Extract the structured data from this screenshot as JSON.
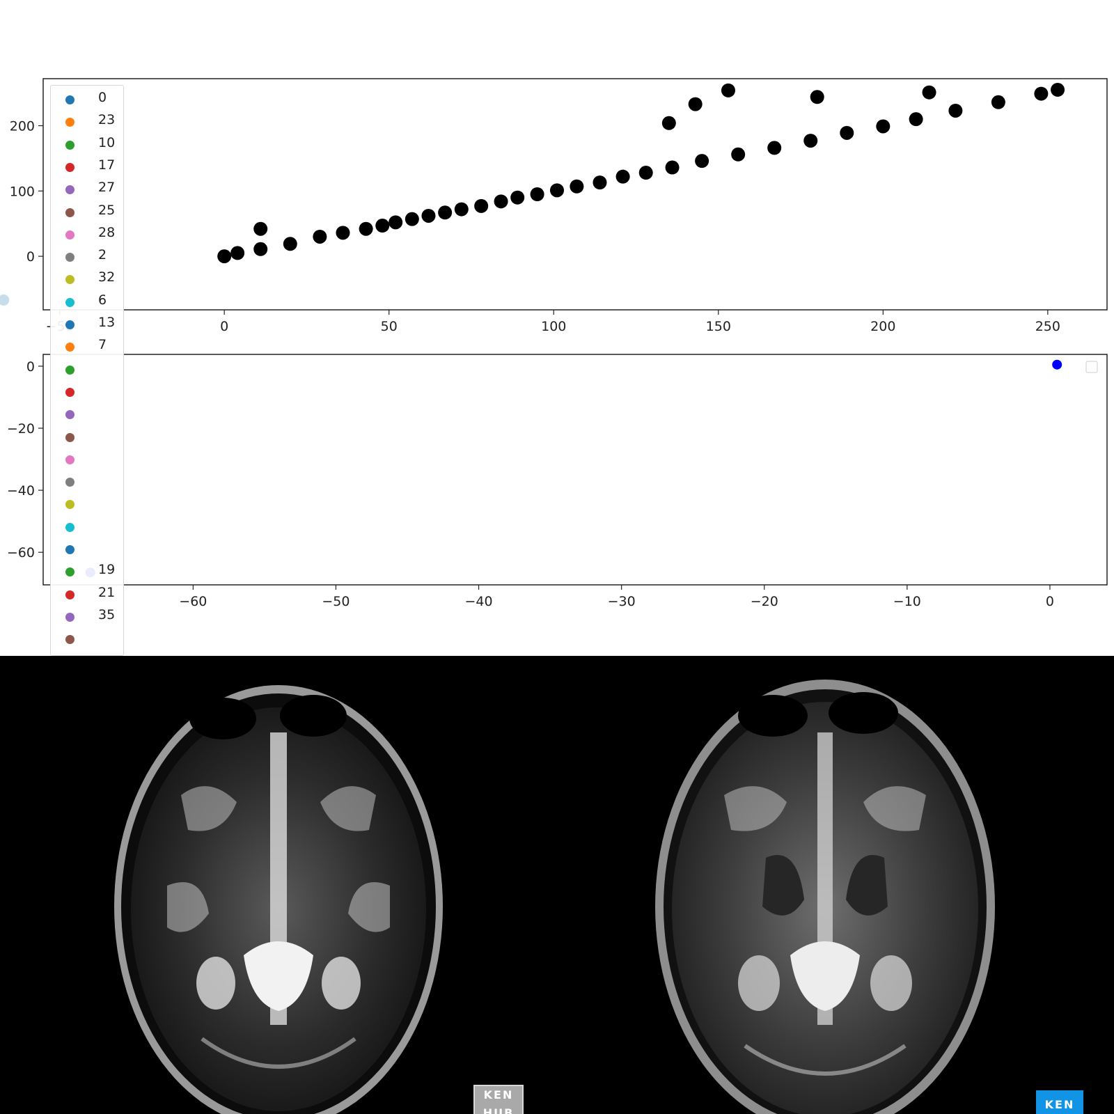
{
  "chart_data": [
    {
      "type": "scatter",
      "title": "",
      "xlabel": "",
      "ylabel": "",
      "xlim": [
        -55,
        268
      ],
      "ylim": [
        -82,
        272
      ],
      "xticks": [
        -50,
        0,
        50,
        100,
        150,
        200,
        250
      ],
      "yticks": [
        0,
        100,
        200
      ],
      "series": [
        {
          "color": "#000000",
          "points": [
            [
              0,
              0
            ],
            [
              4,
              5
            ],
            [
              11,
              11
            ],
            [
              11,
              42
            ],
            [
              20,
              19
            ],
            [
              29,
              30
            ],
            [
              36,
              36
            ],
            [
              43,
              42
            ],
            [
              48,
              47
            ],
            [
              52,
              52
            ],
            [
              57,
              57
            ],
            [
              62,
              62
            ],
            [
              67,
              67
            ],
            [
              72,
              72
            ],
            [
              78,
              77
            ],
            [
              84,
              84
            ],
            [
              89,
              90
            ],
            [
              95,
              95
            ],
            [
              101,
              101
            ],
            [
              107,
              107
            ],
            [
              114,
              113
            ],
            [
              121,
              122
            ],
            [
              128,
              128
            ],
            [
              136,
              136
            ],
            [
              145,
              146
            ],
            [
              156,
              156
            ],
            [
              167,
              166
            ],
            [
              178,
              177
            ],
            [
              189,
              189
            ],
            [
              200,
              199
            ],
            [
              210,
              210
            ],
            [
              222,
              223
            ],
            [
              235,
              236
            ],
            [
              248,
              249
            ],
            [
              253,
              255
            ],
            [
              135,
              204
            ],
            [
              143,
              233
            ],
            [
              153,
              254
            ],
            [
              180,
              244
            ],
            [
              214,
              251
            ]
          ]
        },
        {
          "color": "#1f77b4",
          "faded": true,
          "points": [
            [
              -67,
              -67
            ]
          ]
        }
      ]
    },
    {
      "type": "scatter",
      "title": "",
      "xlabel": "",
      "ylabel": "",
      "xlim": [
        -70.5,
        4
      ],
      "ylim": [
        -70.5,
        3.8
      ],
      "xticks": [
        -60,
        -50,
        -40,
        -30,
        -20,
        -10,
        0
      ],
      "yticks": [
        0,
        -20,
        -40,
        -60
      ],
      "series": [
        {
          "color": "#0000ff",
          "points": [
            [
              -67.2,
              -66.5
            ],
            [
              0.5,
              0.5
            ]
          ]
        }
      ]
    }
  ],
  "legend": {
    "items": [
      {
        "label": "0",
        "color": "#1f77b4"
      },
      {
        "label": "23",
        "color": "#ff7f0e"
      },
      {
        "label": "10",
        "color": "#2ca02c"
      },
      {
        "label": "17",
        "color": "#d62728"
      },
      {
        "label": "27",
        "color": "#9467bd"
      },
      {
        "label": "25",
        "color": "#8c564b"
      },
      {
        "label": "28",
        "color": "#e377c2"
      },
      {
        "label": "2",
        "color": "#7f7f7f"
      },
      {
        "label": "32",
        "color": "#bcbd22"
      },
      {
        "label": "6",
        "color": "#17becf"
      },
      {
        "label": "13",
        "color": "#1f77b4"
      },
      {
        "label": "7",
        "color": "#ff7f0e"
      },
      {
        "label": "",
        "color": "#2ca02c"
      },
      {
        "label": "",
        "color": "#d62728"
      },
      {
        "label": "",
        "color": "#9467bd"
      },
      {
        "label": "",
        "color": "#8c564b"
      },
      {
        "label": "",
        "color": "#e377c2"
      },
      {
        "label": "",
        "color": "#7f7f7f"
      },
      {
        "label": "",
        "color": "#bcbd22"
      },
      {
        "label": "",
        "color": "#17becf"
      },
      {
        "label": "",
        "color": "#1f77b4"
      },
      {
        "label": "19",
        "color": "#2ca02c"
      },
      {
        "label": "21",
        "color": "#d62728"
      },
      {
        "label": "35",
        "color": "#9467bd"
      },
      {
        "label": "",
        "color": "#8c564b"
      }
    ],
    "placement": "left"
  },
  "images": {
    "left_logo": "KEN HUB",
    "right_logo": "KEN"
  }
}
